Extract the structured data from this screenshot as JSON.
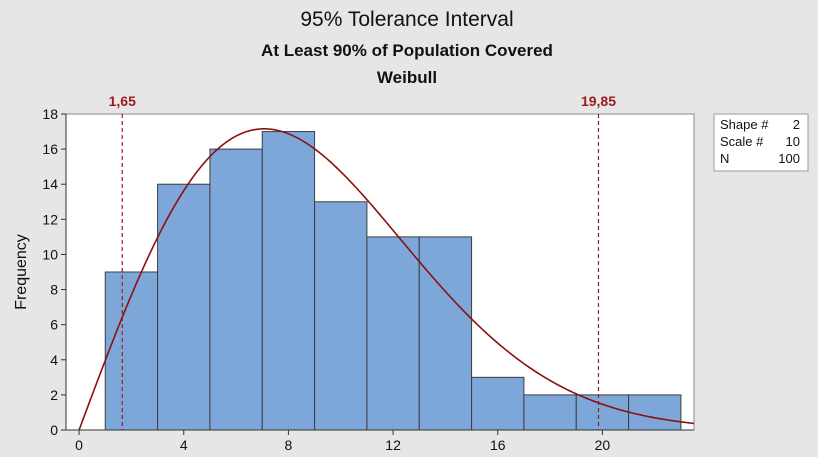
{
  "chart_data": {
    "type": "bar",
    "title": "95% Tolerance Interval",
    "subtitle": "At Least 90% of Population Covered",
    "distribution": "Weibull",
    "ylabel": "Frequency",
    "xlabel": "",
    "xlim": [
      -0.5,
      23.5
    ],
    "ylim": [
      0,
      18
    ],
    "x_ticks": [
      0,
      4,
      8,
      12,
      16,
      20
    ],
    "y_ticks": [
      0,
      2,
      4,
      6,
      8,
      10,
      12,
      14,
      16,
      18
    ],
    "bins": [
      {
        "start": 1,
        "end": 3,
        "value": 9
      },
      {
        "start": 3,
        "end": 5,
        "value": 14
      },
      {
        "start": 5,
        "end": 7,
        "value": 16
      },
      {
        "start": 7,
        "end": 9,
        "value": 17
      },
      {
        "start": 9,
        "end": 11,
        "value": 13
      },
      {
        "start": 11,
        "end": 13,
        "value": 11
      },
      {
        "start": 13,
        "end": 15,
        "value": 11
      },
      {
        "start": 15,
        "end": 17,
        "value": 3
      },
      {
        "start": 17,
        "end": 19,
        "value": 2
      },
      {
        "start": 19,
        "end": 21,
        "value": 2
      },
      {
        "start": 21,
        "end": 23,
        "value": 2
      }
    ],
    "reference_lines": [
      {
        "x": 1.65,
        "label": "1,65"
      },
      {
        "x": 19.85,
        "label": "19,85"
      }
    ],
    "fit_curve": {
      "distribution": "Weibull",
      "shape": 2,
      "scale": 10,
      "n": 100,
      "bin_width": 2
    },
    "legend": [
      {
        "label": "Shape #",
        "value": "2"
      },
      {
        "label": "Scale #",
        "value": "10"
      },
      {
        "label": "N",
        "value": "100"
      }
    ],
    "colors": {
      "bar": "#7da7d9",
      "curve": "#8b1010",
      "reference": "#9b1b1b",
      "background": "#e6e6e6"
    },
    "grid": false,
    "legend_position": "right"
  }
}
